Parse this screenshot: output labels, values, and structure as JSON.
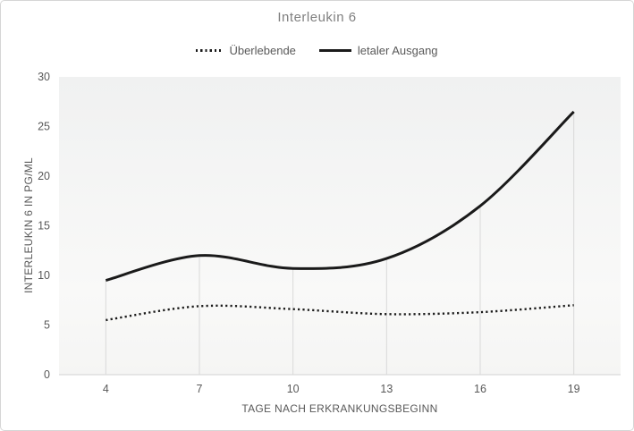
{
  "chart_data": {
    "type": "line",
    "title": "Interleukin 6",
    "xlabel": "TAGE NACH ERKRANKUNGSBEGINN",
    "ylabel": "INTERLEUKIN 6 IN PG/ML",
    "categories": [
      4,
      7,
      10,
      13,
      16,
      19
    ],
    "series": [
      {
        "name": "Überlebende",
        "style": "dotted",
        "values": [
          5.5,
          6.9,
          6.6,
          6.1,
          6.3,
          7.0
        ]
      },
      {
        "name": "letaler Ausgang",
        "style": "solid",
        "values": [
          9.5,
          12.0,
          10.7,
          11.7,
          17.0,
          26.5
        ]
      }
    ],
    "yticks": [
      0,
      5,
      10,
      15,
      20,
      25,
      30
    ],
    "ylim": [
      0,
      30
    ],
    "grid": "vertical-drop-lines-under-solid-series",
    "legend_position": "top-center",
    "smoothed_lines": true,
    "colors": {
      "line": "#1a1a1a",
      "drop_line": "#d9d9d9",
      "axis_line": "#d9d9d9",
      "tick_text": "#595959",
      "title_text": "#808080",
      "plot_bg_top": "#f0f1f1",
      "plot_bg_bottom": "#f9f9f8"
    }
  }
}
